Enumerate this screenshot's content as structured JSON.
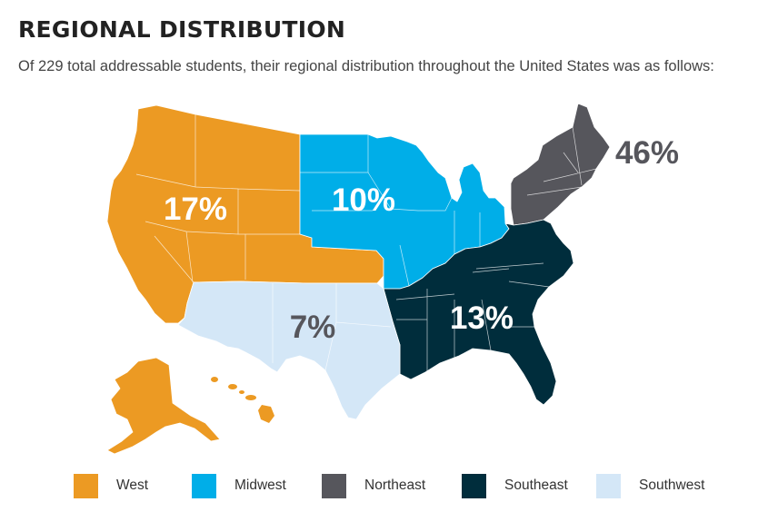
{
  "header": {
    "title": "REGIONAL DISTRIBUTION",
    "subtitle": "Of 229 total addressable students, their regional distribution throughout the United States was as follows:"
  },
  "chart_data": {
    "type": "choropleth-map",
    "title": "REGIONAL DISTRIBUTION",
    "unit": "%",
    "regions": [
      {
        "name": "West",
        "value": 17,
        "label": "17%",
        "color": "#ec9a23",
        "label_color": "#ffffff"
      },
      {
        "name": "Midwest",
        "value": 10,
        "label": "10%",
        "color": "#00aee8",
        "label_color": "#ffffff"
      },
      {
        "name": "Northeast",
        "value": 46,
        "label": "46%",
        "color": "#56565c",
        "label_color": "#56565c"
      },
      {
        "name": "Southeast",
        "value": 13,
        "label": "13%",
        "color": "#002d3c",
        "label_color": "#ffffff"
      },
      {
        "name": "Southwest",
        "value": 7,
        "label": "7%",
        "color": "#d4e7f7",
        "label_color": "#56565c"
      }
    ],
    "legend_position": "bottom"
  }
}
